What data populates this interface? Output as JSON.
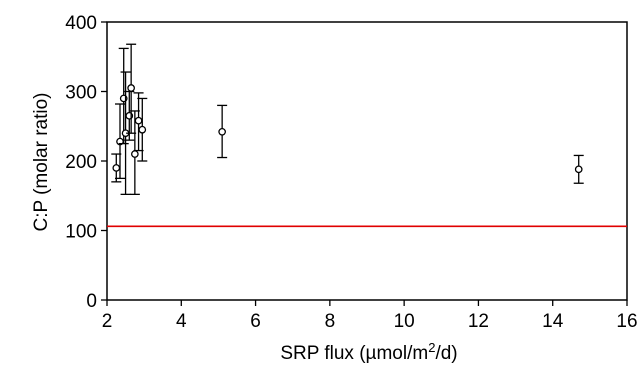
{
  "chart_data": {
    "type": "scatter",
    "title": "",
    "xlabel": "SRP flux (µmol/m",
    "xlabel_sup": "2",
    "xlabel_end": "/d)",
    "ylabel": "C:P (molar ratio)",
    "xlim": [
      2,
      16
    ],
    "ylim": [
      0,
      400
    ],
    "xticks": [
      "2",
      "4",
      "6",
      "8",
      "10",
      "12",
      "14",
      "16"
    ],
    "yticks": [
      "0",
      "100",
      "200",
      "300",
      "400"
    ],
    "grid": false,
    "points": [
      {
        "x": 2.25,
        "y": 190,
        "err_low": 170,
        "err_high": 210
      },
      {
        "x": 2.35,
        "y": 228,
        "err_low": 175,
        "err_high": 282
      },
      {
        "x": 2.45,
        "y": 290,
        "err_low": 225,
        "err_high": 362
      },
      {
        "x": 2.5,
        "y": 240,
        "err_low": 152,
        "err_high": 328
      },
      {
        "x": 2.6,
        "y": 265,
        "err_low": 230,
        "err_high": 300
      },
      {
        "x": 2.65,
        "y": 305,
        "err_low": 240,
        "err_high": 368
      },
      {
        "x": 2.75,
        "y": 210,
        "err_low": 152,
        "err_high": 272
      },
      {
        "x": 2.85,
        "y": 258,
        "err_low": 215,
        "err_high": 298
      },
      {
        "x": 2.95,
        "y": 245,
        "err_low": 200,
        "err_high": 290
      },
      {
        "x": 5.1,
        "y": 242,
        "err_low": 205,
        "err_high": 280
      },
      {
        "x": 14.7,
        "y": 188,
        "err_low": 168,
        "err_high": 208
      }
    ],
    "reference_line": {
      "y": 106,
      "color": "#e00000"
    },
    "marker_color": "#000000"
  }
}
